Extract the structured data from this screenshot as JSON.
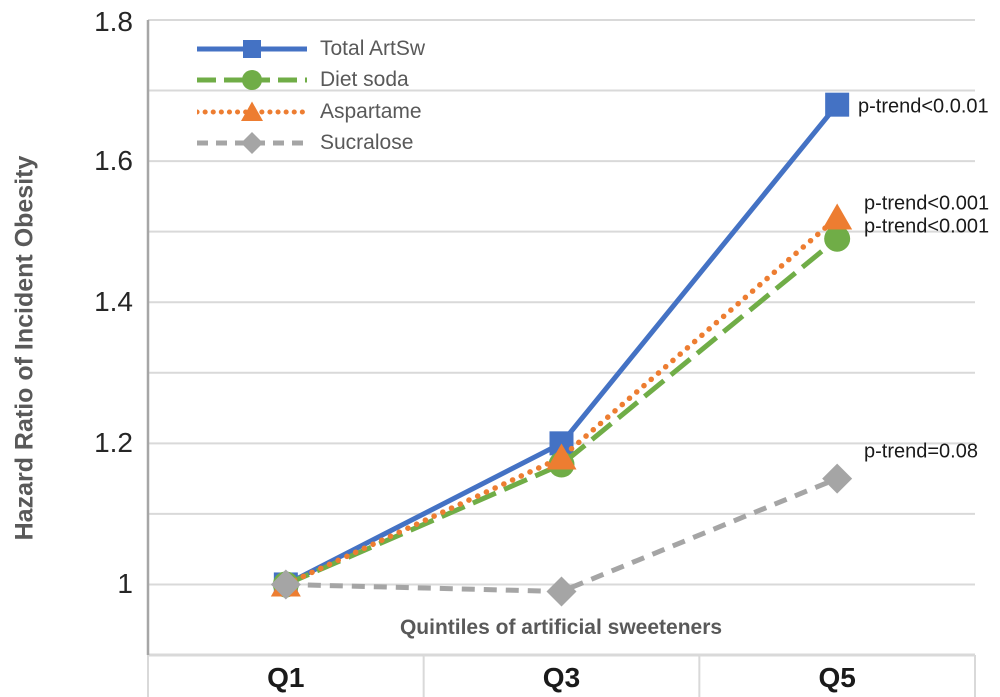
{
  "chart_data": {
    "type": "line",
    "title": "",
    "xlabel": "Quintiles of artificial sweeteners",
    "ylabel": "Hazard Ratio of Incident Obesity",
    "categories": [
      "Q1",
      "Q3",
      "Q5"
    ],
    "ylim": [
      0.9,
      1.8
    ],
    "yticks": [
      {
        "label": "1",
        "value": 1.0
      },
      {
        "label": "1.2",
        "value": 1.2
      },
      {
        "label": "1.4",
        "value": 1.4
      },
      {
        "label": "1.6",
        "value": 1.6
      },
      {
        "label": "1.8",
        "value": 1.8
      }
    ],
    "gridline_step": 0.1,
    "grid": true,
    "legend_position": "top-left",
    "series": [
      {
        "name": "Total ArtSw",
        "values": [
          1.0,
          1.2,
          1.68
        ],
        "color": "#4472C4",
        "line_style": "solid",
        "marker": "square",
        "annotation": "p-trend<0.0.01"
      },
      {
        "name": "Diet soda",
        "values": [
          1.0,
          1.17,
          1.49
        ],
        "color": "#70AD47",
        "line_style": "long-dash",
        "marker": "circle",
        "annotation": "p-trend<0.001"
      },
      {
        "name": "Aspartame",
        "values": [
          1.0,
          1.18,
          1.52
        ],
        "color": "#ED7D31",
        "line_style": "dotted",
        "marker": "triangle",
        "annotation": "p-trend<0.001"
      },
      {
        "name": "Sucralose",
        "values": [
          1.0,
          0.99,
          1.15
        ],
        "color": "#A5A5A5",
        "line_style": "dash",
        "marker": "diamond",
        "annotation": "p-trend=0.08"
      }
    ],
    "colors": {
      "background": "#FFFFFF",
      "gridline": "#D9D9D9",
      "axis_line": "#A6A6A6",
      "tick_text": "#262626",
      "axis_title_text": "#595959",
      "legend_text": "#595959",
      "annotation_text": "#1A1A1A"
    }
  }
}
